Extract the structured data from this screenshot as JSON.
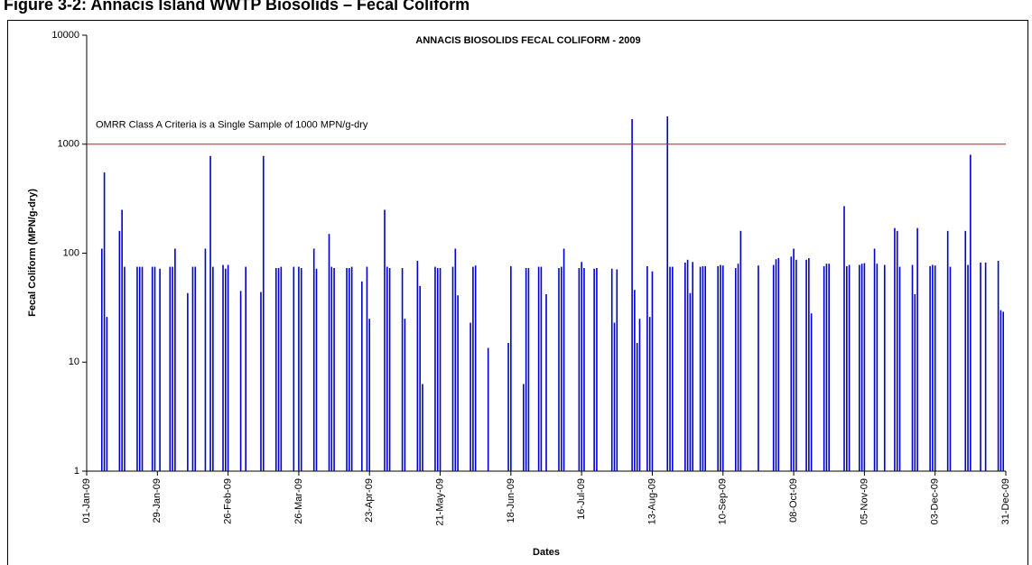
{
  "header": "Figure 3-2: Annacis Island WWTP Biosolids – Fecal Coliform",
  "chart_data": {
    "type": "bar",
    "title": "ANNACIS BIOSOLIDS FECAL COLIFORM - 2009",
    "x_label": "Dates",
    "y_label": "Fecal Coliform (MPN/g-dry)",
    "log_scale": true,
    "color": "#0000cc",
    "xlim": [
      "2009-01-01",
      "2009-12-31"
    ],
    "xticks": [
      {
        "value": "2009-01-01",
        "label": "01-Jan-09"
      },
      {
        "value": "2009-01-29",
        "label": "29-Jan-09"
      },
      {
        "value": "2009-02-26",
        "label": "26-Feb-09"
      },
      {
        "value": "2009-03-26",
        "label": "26-Mar-09"
      },
      {
        "value": "2009-04-23",
        "label": "23-Apr-09"
      },
      {
        "value": "2009-05-21",
        "label": "21-May-09"
      },
      {
        "value": "2009-06-18",
        "label": "18-Jun-09"
      },
      {
        "value": "2009-07-16",
        "label": "16-Jul-09"
      },
      {
        "value": "2009-08-13",
        "label": "13-Aug-09"
      },
      {
        "value": "2009-09-10",
        "label": "10-Sep-09"
      },
      {
        "value": "2009-10-08",
        "label": "08-Oct-09"
      },
      {
        "value": "2009-11-05",
        "label": "05-Nov-09"
      },
      {
        "value": "2009-12-03",
        "label": "03-Dec-09"
      },
      {
        "value": "2009-12-31",
        "label": "31-Dec-09"
      }
    ],
    "ylim": [
      1,
      10000
    ],
    "yticks": [
      1,
      10,
      100,
      1000,
      10000
    ],
    "annotations": [
      {
        "text": "OMRR Class A Criteria is a Single Sample of 1000 MPN/g-dry",
        "y": 1000,
        "color": "#ff0000"
      }
    ],
    "x": [
      "2009-01-07",
      "2009-01-08",
      "2009-01-09",
      "2009-01-14",
      "2009-01-15",
      "2009-01-16",
      "2009-01-21",
      "2009-01-22",
      "2009-01-23",
      "2009-01-27",
      "2009-01-28",
      "2009-01-30",
      "2009-02-03",
      "2009-02-04",
      "2009-02-05",
      "2009-02-10",
      "2009-02-12",
      "2009-02-13",
      "2009-02-17",
      "2009-02-19",
      "2009-02-20",
      "2009-02-24",
      "2009-02-25",
      "2009-02-26",
      "2009-03-03",
      "2009-03-05",
      "2009-03-11",
      "2009-03-12",
      "2009-03-17",
      "2009-03-18",
      "2009-03-19",
      "2009-03-24",
      "2009-03-26",
      "2009-03-27",
      "2009-04-01",
      "2009-04-02",
      "2009-04-07",
      "2009-04-08",
      "2009-04-09",
      "2009-04-14",
      "2009-04-15",
      "2009-04-16",
      "2009-04-20",
      "2009-04-22",
      "2009-04-23",
      "2009-04-29",
      "2009-04-30",
      "2009-05-01",
      "2009-05-06",
      "2009-05-07",
      "2009-05-12",
      "2009-05-13",
      "2009-05-14",
      "2009-05-19",
      "2009-05-20",
      "2009-05-21",
      "2009-05-26",
      "2009-05-27",
      "2009-05-28",
      "2009-06-02",
      "2009-06-03",
      "2009-06-04",
      "2009-06-09",
      "2009-06-17",
      "2009-06-18",
      "2009-06-23",
      "2009-06-24",
      "2009-06-25",
      "2009-06-29",
      "2009-06-30",
      "2009-07-02",
      "2009-07-07",
      "2009-07-08",
      "2009-07-09",
      "2009-07-15",
      "2009-07-16",
      "2009-07-17",
      "2009-07-21",
      "2009-07-22",
      "2009-07-28",
      "2009-07-29",
      "2009-07-30",
      "2009-08-05",
      "2009-08-06",
      "2009-08-07",
      "2009-08-08",
      "2009-08-11",
      "2009-08-12",
      "2009-08-13",
      "2009-08-19",
      "2009-08-20",
      "2009-08-21",
      "2009-08-26",
      "2009-08-27",
      "2009-08-28",
      "2009-08-29",
      "2009-09-01",
      "2009-09-02",
      "2009-09-03",
      "2009-09-08",
      "2009-09-09",
      "2009-09-10",
      "2009-09-15",
      "2009-09-16",
      "2009-09-17",
      "2009-09-24",
      "2009-09-30",
      "2009-10-01",
      "2009-10-02",
      "2009-10-07",
      "2009-10-08",
      "2009-10-09",
      "2009-10-13",
      "2009-10-14",
      "2009-10-15",
      "2009-10-20",
      "2009-10-21",
      "2009-10-22",
      "2009-10-28",
      "2009-10-29",
      "2009-10-30",
      "2009-11-03",
      "2009-11-04",
      "2009-11-05",
      "2009-11-09",
      "2009-11-10",
      "2009-11-13",
      "2009-11-17",
      "2009-11-18",
      "2009-11-19",
      "2009-11-24",
      "2009-11-25",
      "2009-11-26",
      "2009-12-01",
      "2009-12-02",
      "2009-12-03",
      "2009-12-08",
      "2009-12-09",
      "2009-12-15",
      "2009-12-16",
      "2009-12-17",
      "2009-12-21",
      "2009-12-23",
      "2009-12-28",
      "2009-12-29",
      "2009-12-30"
    ],
    "values": [
      110,
      550,
      26,
      160,
      250,
      75,
      75,
      75,
      75,
      75,
      75,
      72,
      75,
      75,
      110,
      43,
      75,
      75,
      110,
      780,
      75,
      78,
      72,
      78,
      45,
      75,
      44,
      780,
      73,
      73,
      75,
      75,
      75,
      73,
      110,
      72,
      150,
      75,
      73,
      73,
      73,
      75,
      55,
      75,
      25,
      250,
      75,
      73,
      73,
      25,
      85,
      50,
      6.3,
      75,
      73,
      73,
      75,
      110,
      41,
      23,
      75,
      77,
      13.5,
      15,
      76,
      6.3,
      73,
      73,
      75,
      75,
      42,
      73,
      75,
      110,
      73,
      83,
      73,
      72,
      73,
      72,
      23,
      71,
      1700,
      46,
      15,
      25,
      76,
      26,
      68,
      1800,
      75,
      75,
      82,
      87,
      43,
      83,
      75,
      76,
      76,
      76,
      78,
      77,
      73,
      80,
      160,
      77,
      78,
      88,
      90,
      93,
      110,
      87,
      87,
      90,
      28,
      76,
      80,
      80,
      270,
      76,
      78,
      78,
      80,
      81,
      110,
      80,
      78,
      170,
      160,
      75,
      78,
      42,
      170,
      76,
      78,
      77,
      160,
      75,
      160,
      78,
      800,
      82,
      82,
      85,
      30,
      29
    ]
  }
}
